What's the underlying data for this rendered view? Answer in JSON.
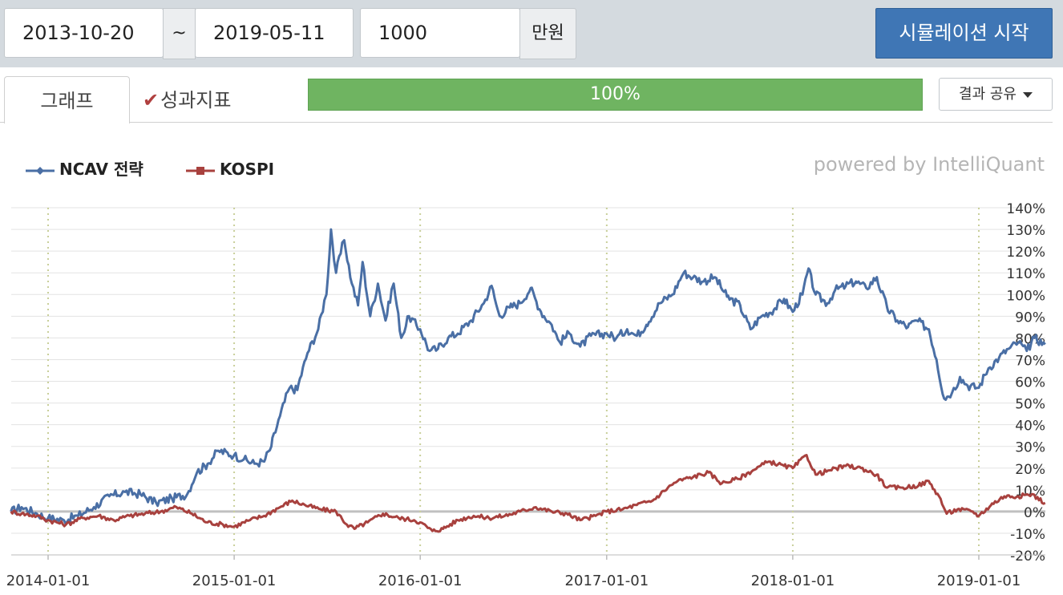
{
  "toolbar": {
    "start_date": "2013-10-20",
    "separator": "~",
    "end_date": "2019-05-11",
    "amount": "1000",
    "amount_unit": "만원",
    "start_button": "시뮬레이션 시작"
  },
  "tabs": [
    {
      "label": "그래프",
      "active": true
    },
    {
      "label": "성과지표",
      "active": false,
      "icon": "check-icon"
    }
  ],
  "progress": {
    "value": 1.0,
    "label": "100%"
  },
  "share": {
    "label": "결과 공유"
  },
  "powered_by": "powered by IntelliQuant",
  "colors": {
    "ncav": "#4a6fa5",
    "kospi": "#a8413e",
    "progress": "#6fb461",
    "button": "#3f76b5"
  },
  "chart_data": {
    "type": "line",
    "x_ticks": [
      "2014-01-01",
      "2015-01-01",
      "2016-01-01",
      "2017-01-01",
      "2018-01-01",
      "2019-01-01"
    ],
    "y_ticks": [
      "140%",
      "130%",
      "120%",
      "110%",
      "100%",
      "90%",
      "80%",
      "70%",
      "60%",
      "50%",
      "40%",
      "30%",
      "20%",
      "10%",
      "0%",
      "-10%",
      "-20%"
    ],
    "ylim": [
      -20,
      140
    ],
    "xlim": [
      "2013-10-20",
      "2019-05-11"
    ],
    "grid": true,
    "legend_position": "top-left",
    "series": [
      {
        "name": "NCAV 전략",
        "color": "#4a6fa5",
        "points": [
          [
            "2013-10-20",
            0
          ],
          [
            "2013-11-10",
            2
          ],
          [
            "2013-12-10",
            -1
          ],
          [
            "2014-01-01",
            -3
          ],
          [
            "2014-02-01",
            -4
          ],
          [
            "2014-03-01",
            -2
          ],
          [
            "2014-04-01",
            2
          ],
          [
            "2014-05-01",
            7
          ],
          [
            "2014-06-01",
            9
          ],
          [
            "2014-07-01",
            8
          ],
          [
            "2014-08-01",
            4
          ],
          [
            "2014-09-01",
            6
          ],
          [
            "2014-10-01",
            8
          ],
          [
            "2014-10-20",
            18
          ],
          [
            "2014-11-10",
            22
          ],
          [
            "2014-12-01",
            28
          ],
          [
            "2015-01-01",
            26
          ],
          [
            "2015-01-20",
            24
          ],
          [
            "2015-02-10",
            22
          ],
          [
            "2015-03-01",
            23
          ],
          [
            "2015-03-15",
            30
          ],
          [
            "2015-04-01",
            44
          ],
          [
            "2015-04-20",
            57
          ],
          [
            "2015-05-05",
            56
          ],
          [
            "2015-05-25",
            73
          ],
          [
            "2015-06-15",
            84
          ],
          [
            "2015-07-01",
            100
          ],
          [
            "2015-07-10",
            130
          ],
          [
            "2015-07-20",
            110
          ],
          [
            "2015-08-05",
            125
          ],
          [
            "2015-08-20",
            105
          ],
          [
            "2015-09-01",
            95
          ],
          [
            "2015-09-10",
            115
          ],
          [
            "2015-09-25",
            90
          ],
          [
            "2015-10-10",
            105
          ],
          [
            "2015-10-25",
            88
          ],
          [
            "2015-11-10",
            105
          ],
          [
            "2015-11-25",
            80
          ],
          [
            "2015-12-10",
            90
          ],
          [
            "2016-01-01",
            84
          ],
          [
            "2016-01-20",
            74
          ],
          [
            "2016-02-05",
            75
          ],
          [
            "2016-02-25",
            80
          ],
          [
            "2016-03-15",
            82
          ],
          [
            "2016-04-10",
            88
          ],
          [
            "2016-05-05",
            96
          ],
          [
            "2016-05-20",
            104
          ],
          [
            "2016-06-05",
            90
          ],
          [
            "2016-06-25",
            94
          ],
          [
            "2016-07-15",
            96
          ],
          [
            "2016-08-05",
            103
          ],
          [
            "2016-08-25",
            92
          ],
          [
            "2016-09-15",
            86
          ],
          [
            "2016-10-01",
            78
          ],
          [
            "2016-10-20",
            82
          ],
          [
            "2016-11-10",
            76
          ],
          [
            "2016-12-01",
            81
          ],
          [
            "2017-01-01",
            82
          ],
          [
            "2017-01-20",
            80
          ],
          [
            "2017-02-10",
            84
          ],
          [
            "2017-03-01",
            81
          ],
          [
            "2017-03-20",
            86
          ],
          [
            "2017-04-15",
            96
          ],
          [
            "2017-05-10",
            100
          ],
          [
            "2017-06-01",
            110
          ],
          [
            "2017-06-20",
            108
          ],
          [
            "2017-07-10",
            106
          ],
          [
            "2017-08-01",
            108
          ],
          [
            "2017-08-25",
            99
          ],
          [
            "2017-09-20",
            95
          ],
          [
            "2017-10-10",
            84
          ],
          [
            "2017-11-01",
            90
          ],
          [
            "2017-11-25",
            93
          ],
          [
            "2017-12-15",
            98
          ],
          [
            "2018-01-01",
            92
          ],
          [
            "2018-01-20",
            100
          ],
          [
            "2018-02-01",
            112
          ],
          [
            "2018-02-15",
            100
          ],
          [
            "2018-03-10",
            96
          ],
          [
            "2018-03-25",
            102
          ],
          [
            "2018-04-15",
            104
          ],
          [
            "2018-05-05",
            106
          ],
          [
            "2018-05-25",
            103
          ],
          [
            "2018-06-15",
            108
          ],
          [
            "2018-07-05",
            94
          ],
          [
            "2018-07-25",
            88
          ],
          [
            "2018-08-15",
            85
          ],
          [
            "2018-09-01",
            88
          ],
          [
            "2018-09-25",
            84
          ],
          [
            "2018-10-10",
            70
          ],
          [
            "2018-10-25",
            52
          ],
          [
            "2018-11-10",
            55
          ],
          [
            "2018-11-25",
            62
          ],
          [
            "2018-12-10",
            58
          ],
          [
            "2019-01-01",
            57
          ],
          [
            "2019-01-20",
            66
          ],
          [
            "2019-02-10",
            71
          ],
          [
            "2019-03-01",
            75
          ],
          [
            "2019-03-20",
            78
          ],
          [
            "2019-04-05",
            74
          ],
          [
            "2019-04-20",
            80
          ],
          [
            "2019-05-11",
            77
          ]
        ]
      },
      {
        "name": "KOSPI",
        "color": "#a8413e",
        "points": [
          [
            "2013-10-20",
            0
          ],
          [
            "2013-11-10",
            -1
          ],
          [
            "2013-12-10",
            -2
          ],
          [
            "2014-01-01",
            -4
          ],
          [
            "2014-02-05",
            -6
          ],
          [
            "2014-03-10",
            -3
          ],
          [
            "2014-04-10",
            -2
          ],
          [
            "2014-05-10",
            -4
          ],
          [
            "2014-06-10",
            -2
          ],
          [
            "2014-07-10",
            -1
          ],
          [
            "2014-08-10",
            0
          ],
          [
            "2014-09-10",
            2
          ],
          [
            "2014-10-10",
            -1
          ],
          [
            "2014-11-10",
            -5
          ],
          [
            "2014-12-10",
            -6
          ],
          [
            "2015-01-01",
            -7
          ],
          [
            "2015-02-01",
            -4
          ],
          [
            "2015-03-01",
            -2
          ],
          [
            "2015-04-01",
            2
          ],
          [
            "2015-04-25",
            5
          ],
          [
            "2015-05-20",
            3
          ],
          [
            "2015-06-20",
            1
          ],
          [
            "2015-07-20",
            0
          ],
          [
            "2015-08-10",
            -6
          ],
          [
            "2015-08-25",
            -8
          ],
          [
            "2015-09-20",
            -5
          ],
          [
            "2015-10-20",
            -1
          ],
          [
            "2015-11-20",
            -3
          ],
          [
            "2015-12-20",
            -4
          ],
          [
            "2016-01-01",
            -5
          ],
          [
            "2016-01-25",
            -9
          ],
          [
            "2016-02-15",
            -8
          ],
          [
            "2016-03-15",
            -4
          ],
          [
            "2016-04-15",
            -2
          ],
          [
            "2016-05-15",
            -3
          ],
          [
            "2016-06-15",
            -2
          ],
          [
            "2016-07-15",
            0
          ],
          [
            "2016-08-15",
            2
          ],
          [
            "2016-09-15",
            0
          ],
          [
            "2016-10-15",
            -1
          ],
          [
            "2016-11-10",
            -4
          ],
          [
            "2016-12-10",
            -2
          ],
          [
            "2017-01-01",
            0
          ],
          [
            "2017-02-01",
            1
          ],
          [
            "2017-03-01",
            3
          ],
          [
            "2017-04-01",
            5
          ],
          [
            "2017-05-01",
            11
          ],
          [
            "2017-05-20",
            14
          ],
          [
            "2017-06-20",
            16
          ],
          [
            "2017-07-20",
            18
          ],
          [
            "2017-08-15",
            13
          ],
          [
            "2017-09-15",
            15
          ],
          [
            "2017-10-15",
            19
          ],
          [
            "2017-11-15",
            23
          ],
          [
            "2017-12-15",
            21
          ],
          [
            "2018-01-01",
            20
          ],
          [
            "2018-01-28",
            26
          ],
          [
            "2018-02-15",
            17
          ],
          [
            "2018-03-15",
            19
          ],
          [
            "2018-04-15",
            21
          ],
          [
            "2018-05-15",
            20
          ],
          [
            "2018-06-15",
            17
          ],
          [
            "2018-07-05",
            11
          ],
          [
            "2018-08-05",
            11
          ],
          [
            "2018-09-05",
            12
          ],
          [
            "2018-09-25",
            14
          ],
          [
            "2018-10-15",
            7
          ],
          [
            "2018-10-30",
            -1
          ],
          [
            "2018-11-20",
            1
          ],
          [
            "2018-12-20",
            0
          ],
          [
            "2019-01-01",
            -2
          ],
          [
            "2019-01-25",
            3
          ],
          [
            "2019-02-20",
            7
          ],
          [
            "2019-03-20",
            7
          ],
          [
            "2019-04-15",
            8
          ],
          [
            "2019-05-11",
            4
          ]
        ]
      }
    ]
  }
}
